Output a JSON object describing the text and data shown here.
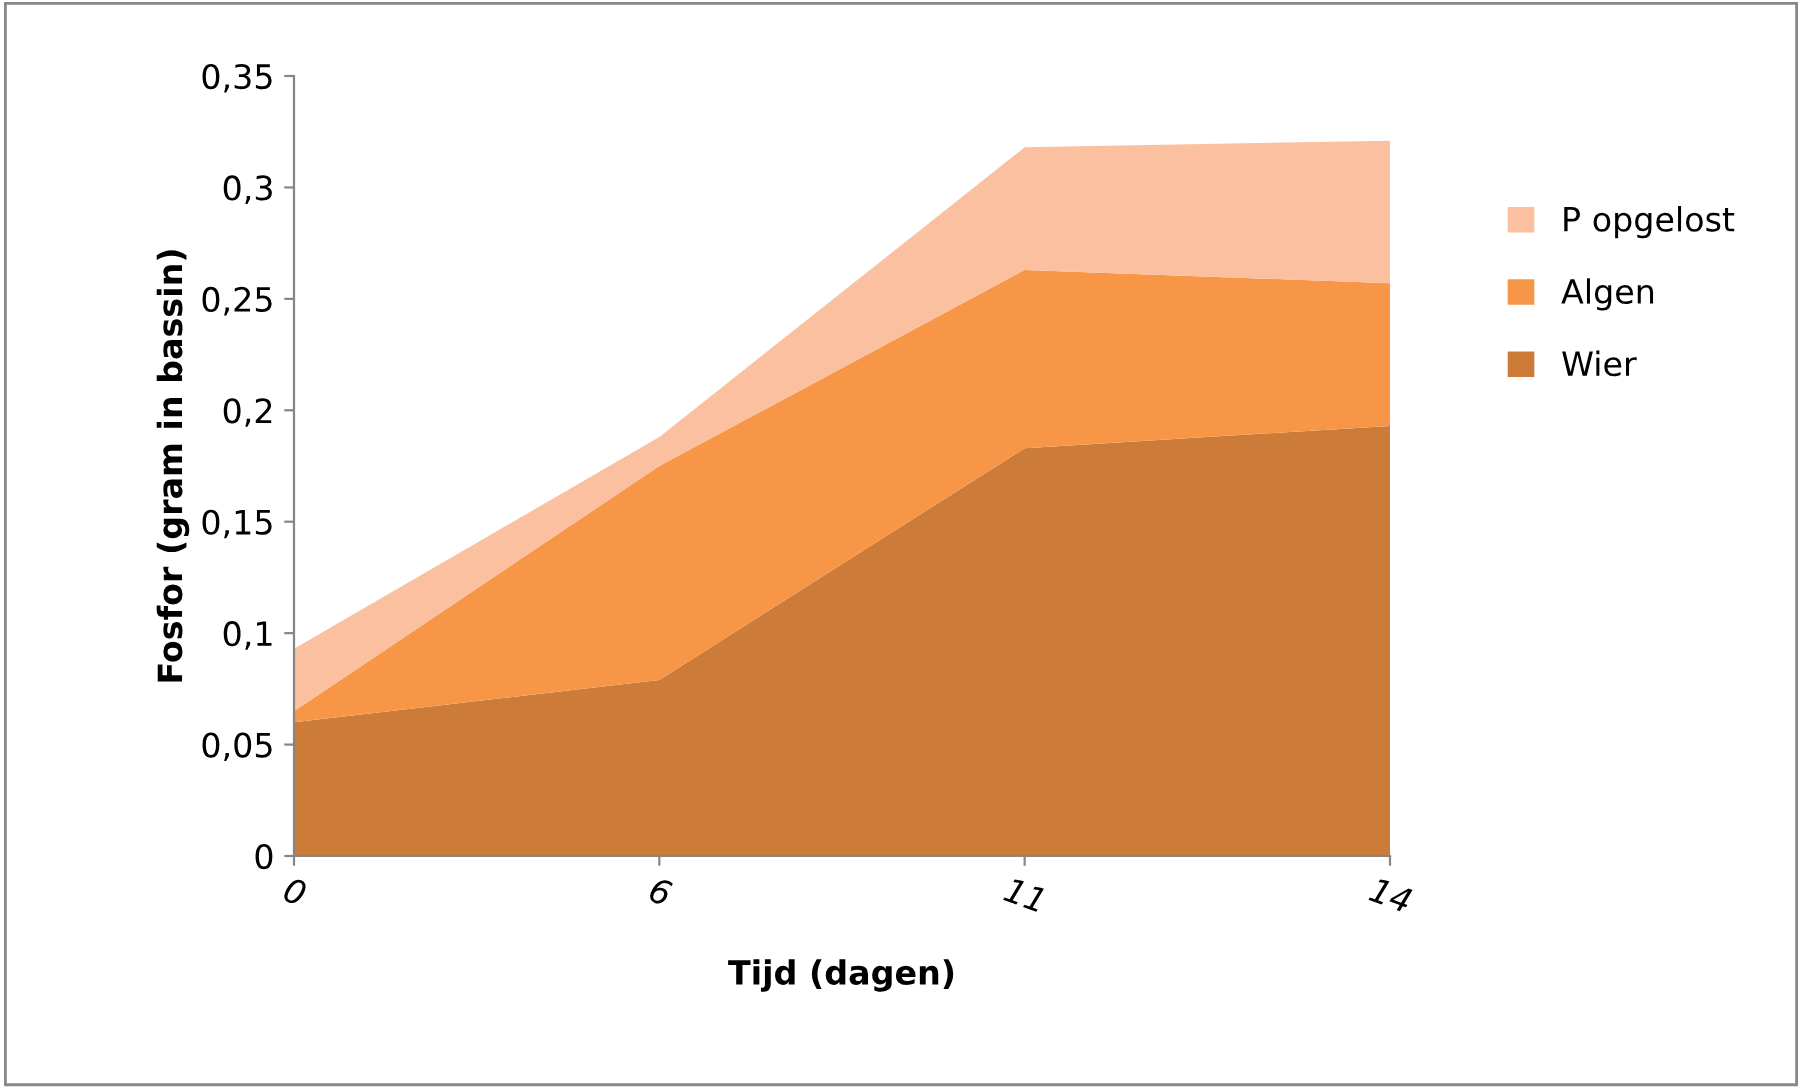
{
  "chart_data": {
    "type": "area",
    "stacked": true,
    "xlabel": "Tijd (dagen)",
    "ylabel": "Fosfor (gram in bassin)",
    "categories": [
      "0",
      "6",
      "11",
      "14"
    ],
    "series": [
      {
        "name": "Wier",
        "color": "#cd7b39",
        "values": [
          0.06,
          0.079,
          0.183,
          0.193
        ]
      },
      {
        "name": "Algen",
        "color": "#f79646",
        "values": [
          0.005,
          0.096,
          0.08,
          0.064
        ]
      },
      {
        "name": "P opgelost",
        "color": "#fac09f",
        "values": [
          0.028,
          0.013,
          0.055,
          0.064
        ]
      }
    ],
    "ylim": [
      0,
      0.35
    ],
    "yticks": [
      0,
      {
        "value": 0.05,
        "label": "0,05"
      },
      {
        "value": 0.1,
        "label": "0,1"
      },
      {
        "value": 0.15,
        "label": "0,15"
      },
      {
        "value": 0.2,
        "label": "0,2"
      },
      {
        "value": 0.25,
        "label": "0,25"
      },
      {
        "value": 0.3,
        "label": "0,3"
      },
      {
        "value": 0.35,
        "label": "0,35"
      }
    ],
    "grid": false,
    "legend": "right"
  }
}
